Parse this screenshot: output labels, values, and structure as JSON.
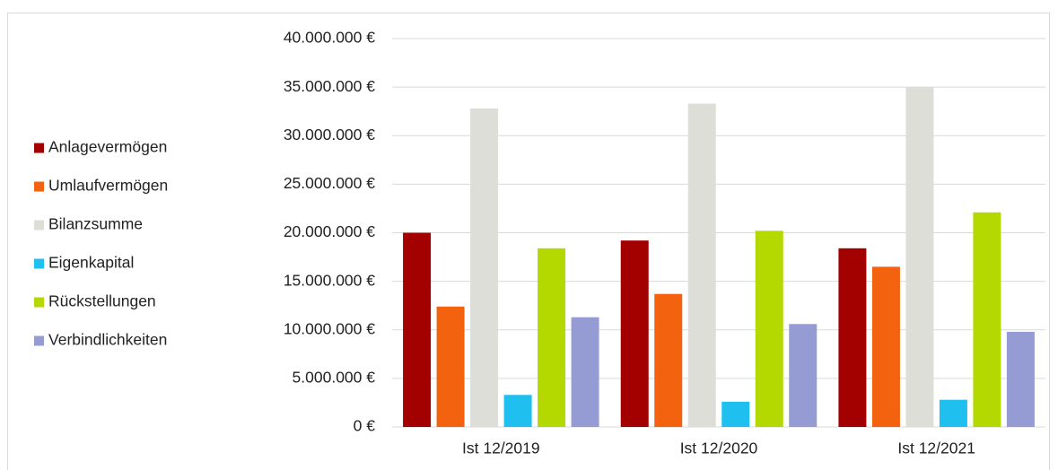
{
  "chart_data": {
    "type": "bar",
    "categories": [
      "Ist 12/2019",
      "Ist 12/2020",
      "Ist 12/2021"
    ],
    "series": [
      {
        "name": "Anlagevermögen",
        "color": "#a30000",
        "values": [
          20000000,
          19200000,
          18400000
        ]
      },
      {
        "name": "Umlaufvermögen",
        "color": "#f2620f",
        "values": [
          12400000,
          13700000,
          16500000
        ]
      },
      {
        "name": "Bilanzsumme",
        "color": "#deded9",
        "values": [
          32800000,
          33300000,
          35000000
        ]
      },
      {
        "name": "Eigenkapital",
        "color": "#1fc0f0",
        "values": [
          3300000,
          2600000,
          2800000
        ]
      },
      {
        "name": "Rückstellungen",
        "color": "#b3d900",
        "values": [
          18400000,
          20200000,
          22100000
        ]
      },
      {
        "name": "Verbindlichkeiten",
        "color": "#959cd3",
        "values": [
          11300000,
          10600000,
          9800000
        ]
      }
    ],
    "ylim": [
      0,
      40000000
    ],
    "yticks": [
      {
        "value": 0,
        "label": "0 €"
      },
      {
        "value": 5000000,
        "label": "5.000.000 €"
      },
      {
        "value": 10000000,
        "label": "10.000.000 €"
      },
      {
        "value": 15000000,
        "label": "15.000.000 €"
      },
      {
        "value": 20000000,
        "label": "20.000.000 €"
      },
      {
        "value": 25000000,
        "label": "25.000.000 €"
      },
      {
        "value": 30000000,
        "label": "30.000.000 €"
      },
      {
        "value": 35000000,
        "label": "35.000.000 €"
      },
      {
        "value": 40000000,
        "label": "40.000.000 €"
      }
    ],
    "grid": true,
    "legend": "left"
  }
}
